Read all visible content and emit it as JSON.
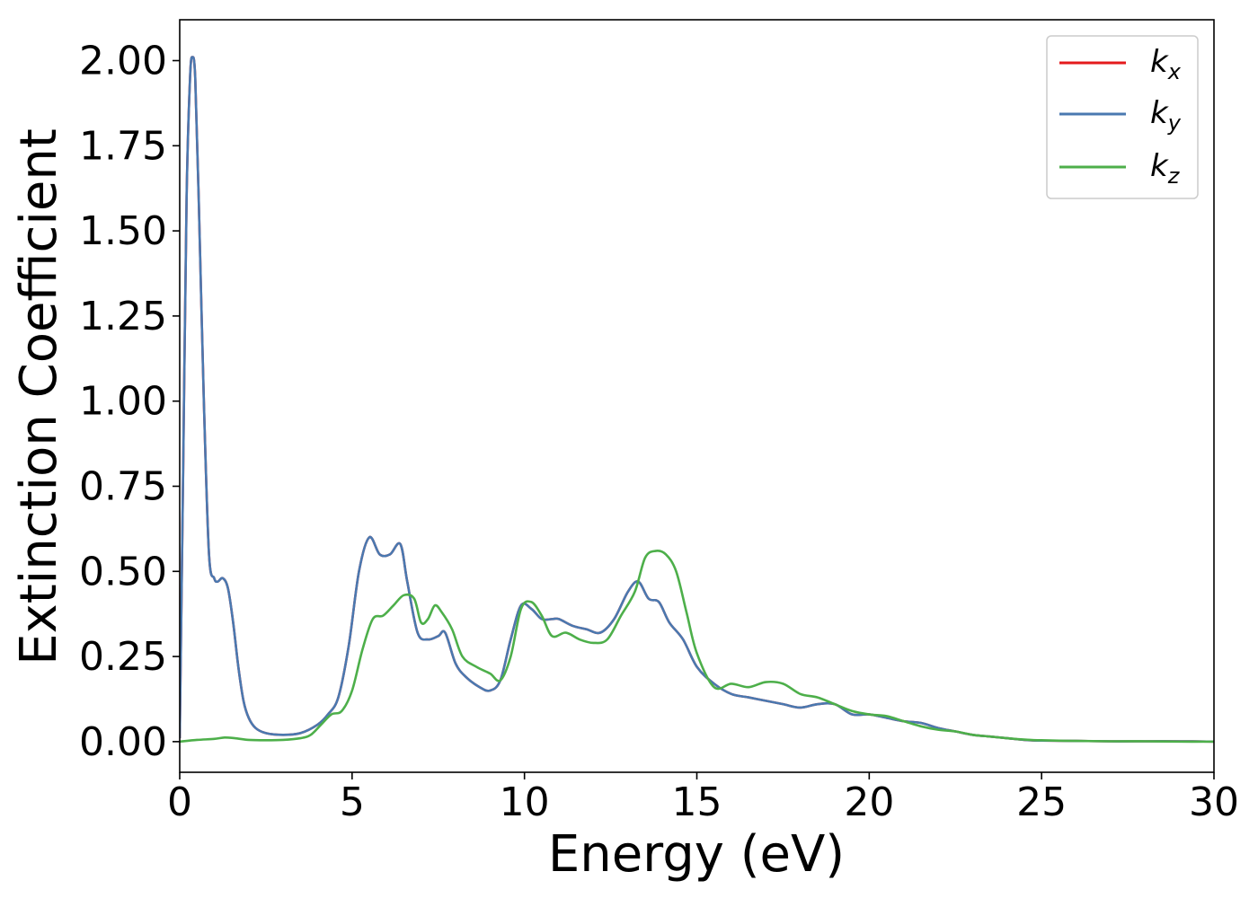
{
  "chart_data": {
    "type": "line",
    "title": "",
    "xlabel": "Energy (eV)",
    "ylabel": "Extinction Coefficient",
    "xlim": [
      0,
      30
    ],
    "ylim": [
      -0.09,
      2.12
    ],
    "xticks": [
      0,
      5,
      10,
      15,
      20,
      25,
      30
    ],
    "xtick_labels": [
      "0",
      "5",
      "10",
      "15",
      "20",
      "25",
      "30"
    ],
    "yticks": [
      0.0,
      0.25,
      0.5,
      0.75,
      1.0,
      1.25,
      1.5,
      1.75,
      2.0
    ],
    "ytick_labels": [
      "0.00",
      "0.25",
      "0.50",
      "0.75",
      "1.00",
      "1.25",
      "1.50",
      "1.75",
      "2.00"
    ],
    "grid": false,
    "legend_position": "top-right",
    "legend": [
      {
        "base": "k",
        "sub": "x",
        "color": "#e41a1c"
      },
      {
        "base": "k",
        "sub": "y",
        "color": "#4a79b0"
      },
      {
        "base": "k",
        "sub": "z",
        "color": "#4daf4a"
      }
    ],
    "series": [
      {
        "name": "k_x",
        "color": "#e41a1c",
        "x": [
          0.0,
          0.1,
          0.2,
          0.3,
          0.37,
          0.45,
          0.55,
          0.7,
          0.85,
          1.0,
          1.1,
          1.25,
          1.4,
          1.55,
          1.7,
          1.85,
          2.0,
          2.2,
          2.5,
          3.0,
          3.5,
          4.0,
          4.3,
          4.6,
          4.9,
          5.2,
          5.5,
          5.8,
          6.1,
          6.4,
          6.6,
          6.9,
          7.2,
          7.5,
          7.7,
          8.0,
          8.3,
          8.7,
          9.0,
          9.3,
          9.6,
          9.9,
          10.2,
          10.5,
          10.8,
          11.0,
          11.4,
          11.8,
          12.2,
          12.6,
          13.0,
          13.3,
          13.6,
          13.9,
          14.2,
          14.6,
          15.0,
          15.5,
          16.0,
          16.5,
          17.0,
          17.5,
          18.0,
          18.5,
          19.0,
          19.5,
          20.0,
          20.5,
          21.0,
          21.5,
          22.0,
          22.5,
          23.0,
          23.5,
          24.0,
          24.5,
          25.0,
          26.0,
          27.0,
          28.0,
          29.0,
          30.0
        ],
        "y": [
          0.01,
          0.8,
          1.6,
          1.95,
          2.01,
          1.95,
          1.6,
          1.0,
          0.55,
          0.48,
          0.47,
          0.48,
          0.45,
          0.35,
          0.22,
          0.12,
          0.07,
          0.04,
          0.025,
          0.02,
          0.025,
          0.05,
          0.08,
          0.13,
          0.28,
          0.5,
          0.6,
          0.55,
          0.55,
          0.58,
          0.47,
          0.32,
          0.3,
          0.31,
          0.32,
          0.23,
          0.19,
          0.16,
          0.15,
          0.18,
          0.3,
          0.4,
          0.39,
          0.36,
          0.36,
          0.36,
          0.34,
          0.33,
          0.32,
          0.36,
          0.44,
          0.47,
          0.42,
          0.41,
          0.35,
          0.3,
          0.22,
          0.17,
          0.14,
          0.13,
          0.12,
          0.11,
          0.1,
          0.11,
          0.11,
          0.08,
          0.08,
          0.07,
          0.06,
          0.055,
          0.04,
          0.03,
          0.02,
          0.015,
          0.01,
          0.005,
          0.003,
          0.002,
          0.001,
          0.001,
          0.001,
          0.0
        ]
      },
      {
        "name": "k_y",
        "color": "#4a79b0",
        "x": [
          0.0,
          0.1,
          0.2,
          0.3,
          0.37,
          0.45,
          0.55,
          0.7,
          0.85,
          1.0,
          1.1,
          1.25,
          1.4,
          1.55,
          1.7,
          1.85,
          2.0,
          2.2,
          2.5,
          3.0,
          3.5,
          4.0,
          4.3,
          4.6,
          4.9,
          5.2,
          5.5,
          5.8,
          6.1,
          6.4,
          6.6,
          6.9,
          7.2,
          7.5,
          7.7,
          8.0,
          8.3,
          8.7,
          9.0,
          9.3,
          9.6,
          9.9,
          10.2,
          10.5,
          10.8,
          11.0,
          11.4,
          11.8,
          12.2,
          12.6,
          13.0,
          13.3,
          13.6,
          13.9,
          14.2,
          14.6,
          15.0,
          15.5,
          16.0,
          16.5,
          17.0,
          17.5,
          18.0,
          18.5,
          19.0,
          19.5,
          20.0,
          20.5,
          21.0,
          21.5,
          22.0,
          22.5,
          23.0,
          23.5,
          24.0,
          24.5,
          25.0,
          26.0,
          27.0,
          28.0,
          29.0,
          30.0
        ],
        "y": [
          0.01,
          0.8,
          1.6,
          1.95,
          2.01,
          1.95,
          1.6,
          1.0,
          0.55,
          0.48,
          0.47,
          0.48,
          0.45,
          0.35,
          0.22,
          0.12,
          0.07,
          0.04,
          0.025,
          0.02,
          0.025,
          0.05,
          0.08,
          0.13,
          0.28,
          0.5,
          0.6,
          0.55,
          0.55,
          0.58,
          0.47,
          0.32,
          0.3,
          0.31,
          0.32,
          0.23,
          0.19,
          0.16,
          0.15,
          0.18,
          0.3,
          0.4,
          0.39,
          0.36,
          0.36,
          0.36,
          0.34,
          0.33,
          0.32,
          0.36,
          0.44,
          0.47,
          0.42,
          0.41,
          0.35,
          0.3,
          0.22,
          0.17,
          0.14,
          0.13,
          0.12,
          0.11,
          0.1,
          0.11,
          0.11,
          0.08,
          0.08,
          0.07,
          0.06,
          0.055,
          0.04,
          0.03,
          0.02,
          0.015,
          0.01,
          0.005,
          0.003,
          0.002,
          0.001,
          0.001,
          0.001,
          0.0
        ]
      },
      {
        "name": "k_z",
        "color": "#4daf4a",
        "x": [
          0.0,
          0.5,
          1.0,
          1.3,
          1.6,
          2.0,
          2.5,
          3.0,
          3.5,
          3.8,
          4.1,
          4.4,
          4.7,
          5.0,
          5.3,
          5.6,
          5.9,
          6.2,
          6.5,
          6.8,
          7.0,
          7.2,
          7.4,
          7.6,
          7.9,
          8.2,
          8.6,
          9.0,
          9.3,
          9.6,
          9.9,
          10.2,
          10.5,
          10.8,
          11.2,
          11.6,
          12.0,
          12.4,
          12.8,
          13.2,
          13.5,
          13.8,
          14.1,
          14.4,
          14.7,
          15.0,
          15.5,
          16.0,
          16.5,
          17.0,
          17.5,
          18.0,
          18.5,
          19.0,
          19.5,
          20.0,
          20.5,
          21.0,
          21.5,
          22.0,
          22.5,
          23.0,
          23.5,
          24.0,
          24.5,
          25.0,
          26.0,
          27.0,
          28.0,
          29.0,
          30.0
        ],
        "y": [
          0.0,
          0.005,
          0.008,
          0.012,
          0.01,
          0.005,
          0.004,
          0.005,
          0.01,
          0.02,
          0.05,
          0.08,
          0.09,
          0.15,
          0.27,
          0.36,
          0.37,
          0.4,
          0.43,
          0.42,
          0.35,
          0.36,
          0.4,
          0.38,
          0.33,
          0.25,
          0.22,
          0.2,
          0.18,
          0.25,
          0.39,
          0.41,
          0.37,
          0.31,
          0.32,
          0.3,
          0.29,
          0.3,
          0.37,
          0.44,
          0.54,
          0.56,
          0.55,
          0.5,
          0.38,
          0.26,
          0.16,
          0.17,
          0.16,
          0.175,
          0.17,
          0.14,
          0.13,
          0.11,
          0.09,
          0.08,
          0.075,
          0.06,
          0.045,
          0.035,
          0.03,
          0.02,
          0.015,
          0.01,
          0.006,
          0.004,
          0.002,
          0.001,
          0.001,
          0.0,
          0.0
        ]
      }
    ]
  }
}
